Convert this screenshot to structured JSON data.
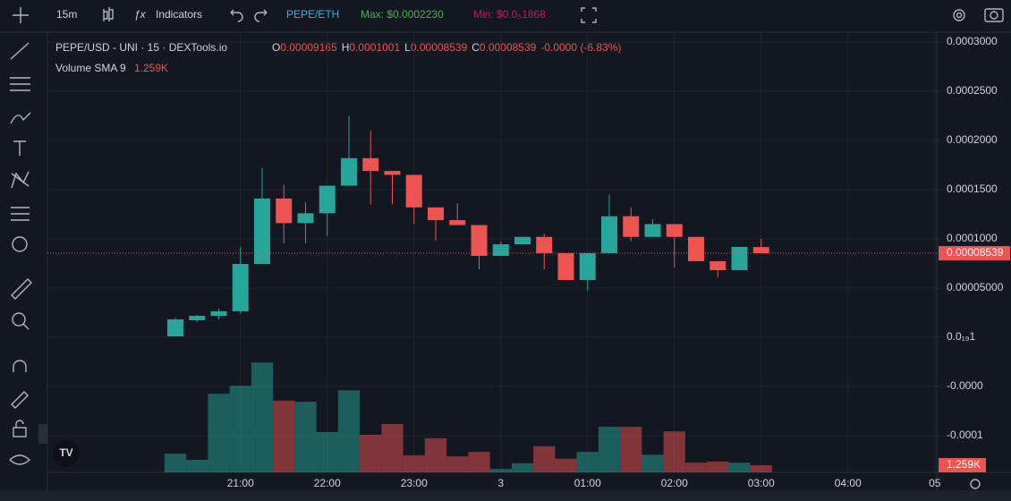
{
  "toolbar": {
    "interval": "15m",
    "indicators": "Indicators",
    "pair": "PEPE/ETH",
    "max": "Max: $0.0002230",
    "min": "Min: $0.0₅1868"
  },
  "chart_data": {
    "type": "candlestick",
    "title": "PEPE/USD - UNI · 15 · DEXTools.io",
    "ohlc_legend": [
      {
        "label": "O",
        "value": "0.00009165"
      },
      {
        "label": "H",
        "value": "0.0001001"
      },
      {
        "label": "L",
        "value": "0.00008539"
      },
      {
        "label": "C",
        "value": "0.00008539"
      }
    ],
    "change": "-0.0000 (-6.83%)",
    "volume_legend": {
      "name": "Volume SMA 9",
      "value": "1.259K"
    },
    "categories": [
      null,
      null,
      null,
      "21:00",
      null,
      null,
      null,
      "22:00",
      null,
      null,
      null,
      "23:00",
      null,
      null,
      null,
      "3",
      null,
      null,
      null,
      "01:00",
      null,
      null,
      null,
      "02:00",
      null,
      null,
      null,
      "03:00",
      null,
      null,
      null,
      "04:00",
      null,
      null,
      null,
      "05"
    ],
    "series": {
      "open": [
        9e-07,
        1.73e-05,
        2.18e-05,
        2.64e-05,
        7.45e-05,
        0.000141,
        0.000116,
        0.000126,
        0.000154,
        0.000182,
        0.000169,
        0.000165,
        0.000132,
        0.000119,
        0.000114,
        8.27e-05,
        9.45e-05,
        0.000102,
        8.55e-05,
        5.82e-05,
        8.55e-05,
        0.000123,
        0.000102,
        0.000115,
        0.000102,
        7.73e-05,
        6.82e-05,
        9.165e-05,
        null,
        null,
        null,
        null,
        null,
        null,
        null,
        null
      ],
      "high": [
        2e-05,
        2.27e-05,
        2.91e-05,
        9.18e-05,
        0.000172,
        0.000155,
        0.000137,
        0.000154,
        0.000225,
        0.00021,
        0.000169,
        0.000165,
        0.000132,
        0.000136,
        0.000114,
        9.73e-05,
        0.000102,
        0.000105,
        8.55e-05,
        8.55e-05,
        0.000145,
        0.000132,
        0.00012,
        0.000115,
        0.000102,
        7.73e-05,
        9.18e-05,
        0.0001001,
        null,
        null,
        null,
        null,
        null,
        null,
        null,
        null
      ],
      "low": [
        9e-07,
        1.55e-05,
        1.82e-05,
        2.4e-05,
        7.45e-05,
        9.55e-05,
        9.55e-05,
        0.000103,
        0.000154,
        0.000135,
        0.000135,
        0.000115,
        9.82e-05,
        0.000114,
        6.91e-05,
        8.27e-05,
        9.45e-05,
        6.91e-05,
        5.82e-05,
        4.73e-05,
        8.55e-05,
        9.82e-05,
        0.000102,
        7.09e-05,
        7.73e-05,
        6.09e-05,
        6.82e-05,
        8.539e-05,
        null,
        null,
        null,
        null,
        null,
        null,
        null,
        null
      ],
      "close": [
        1.82e-05,
        2.18e-05,
        2.64e-05,
        7.45e-05,
        0.000141,
        0.000116,
        0.000126,
        0.000154,
        0.000182,
        0.000169,
        0.000165,
        0.000132,
        0.000119,
        0.000114,
        8.27e-05,
        9.45e-05,
        0.000102,
        8.55e-05,
        5.82e-05,
        8.55e-05,
        0.000123,
        0.000102,
        0.000115,
        0.000102,
        7.73e-05,
        6.82e-05,
        9.18e-05,
        8.539e-05,
        null,
        null,
        null,
        null,
        null,
        null,
        null,
        null
      ],
      "volume": [
        3300,
        2200,
        13800,
        15200,
        19300,
        12600,
        12400,
        7100,
        14400,
        6600,
        8500,
        3000,
        6000,
        2800,
        3600,
        600,
        1600,
        4600,
        2400,
        3600,
        8000,
        8000,
        3100,
        7200,
        1700,
        1900,
        1700,
        1259,
        null,
        null,
        null,
        null,
        null,
        null,
        null,
        null
      ]
    },
    "last_close_label": "0.00008539",
    "last_volume_label": "1.259K",
    "up_color": "#26a69a",
    "down_color": "#ef5350",
    "ylim": [
      -0.0001373,
      0.00031
    ],
    "yticks": [
      {
        "value": 0.0003,
        "label": "0.0003000"
      },
      {
        "value": 0.00025,
        "label": "0.0002500"
      },
      {
        "value": 0.0002,
        "label": "0.0002000"
      },
      {
        "value": 0.00015,
        "label": "0.0001500"
      },
      {
        "value": 0.0001,
        "label": "0.0001000"
      },
      {
        "value": 5e-05,
        "label": "0.00005000"
      },
      {
        "value": 0,
        "label": "0.0₁₉1"
      },
      {
        "value": -5e-05,
        "label": "-0.0000"
      },
      {
        "value": -0.0001,
        "label": "-0.0001"
      }
    ],
    "y2lim": [
      0,
      77300
    ],
    "grid": true
  }
}
